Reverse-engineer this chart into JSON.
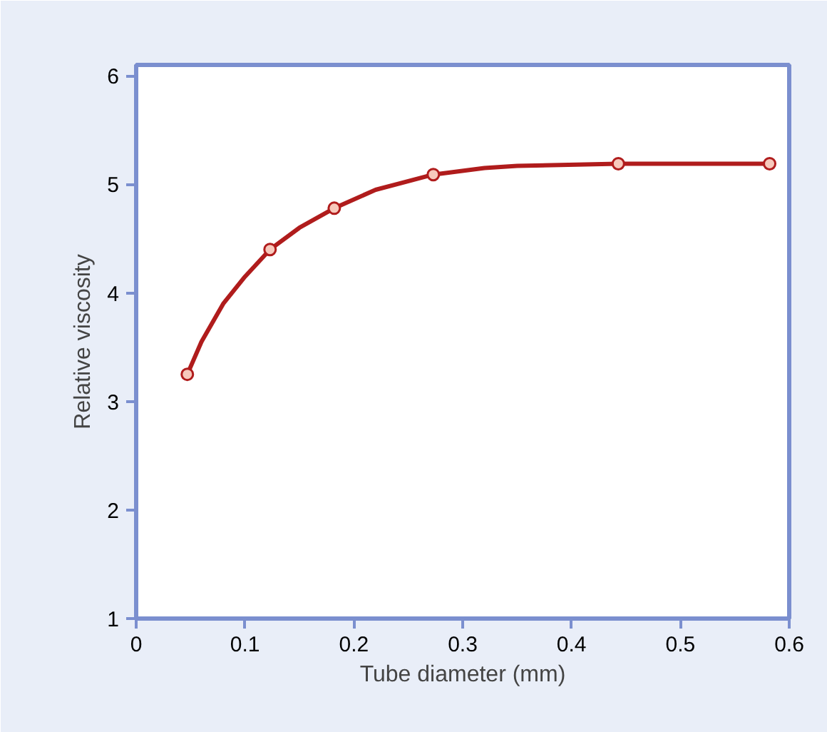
{
  "chart_data": {
    "type": "line",
    "xlabel": "Tube diameter (mm)",
    "ylabel": "Relative viscosity",
    "xlim": [
      0,
      0.6
    ],
    "ylim": [
      1,
      6.1
    ],
    "xticks": [
      0,
      0.1,
      0.2,
      0.3,
      0.4,
      0.5,
      0.6
    ],
    "yticks": [
      1,
      2,
      3,
      4,
      5,
      6
    ],
    "grid": false,
    "series": [
      {
        "type": "line",
        "color": "#b01c1c",
        "marker": "none",
        "x": [
          0.047,
          0.06,
          0.08,
          0.1,
          0.123,
          0.15,
          0.182,
          0.22,
          0.273,
          0.32,
          0.35,
          0.443,
          0.582
        ],
        "values": [
          3.25,
          3.55,
          3.9,
          4.15,
          4.4,
          4.6,
          4.78,
          4.95,
          5.09,
          5.15,
          5.17,
          5.19,
          5.19
        ]
      },
      {
        "type": "scatter",
        "color": "#b01c1c",
        "marker": "circle",
        "x": [
          0.047,
          0.123,
          0.182,
          0.273,
          0.443,
          0.582
        ],
        "values": [
          3.25,
          4.4,
          4.78,
          5.09,
          5.19,
          5.19
        ]
      }
    ]
  }
}
